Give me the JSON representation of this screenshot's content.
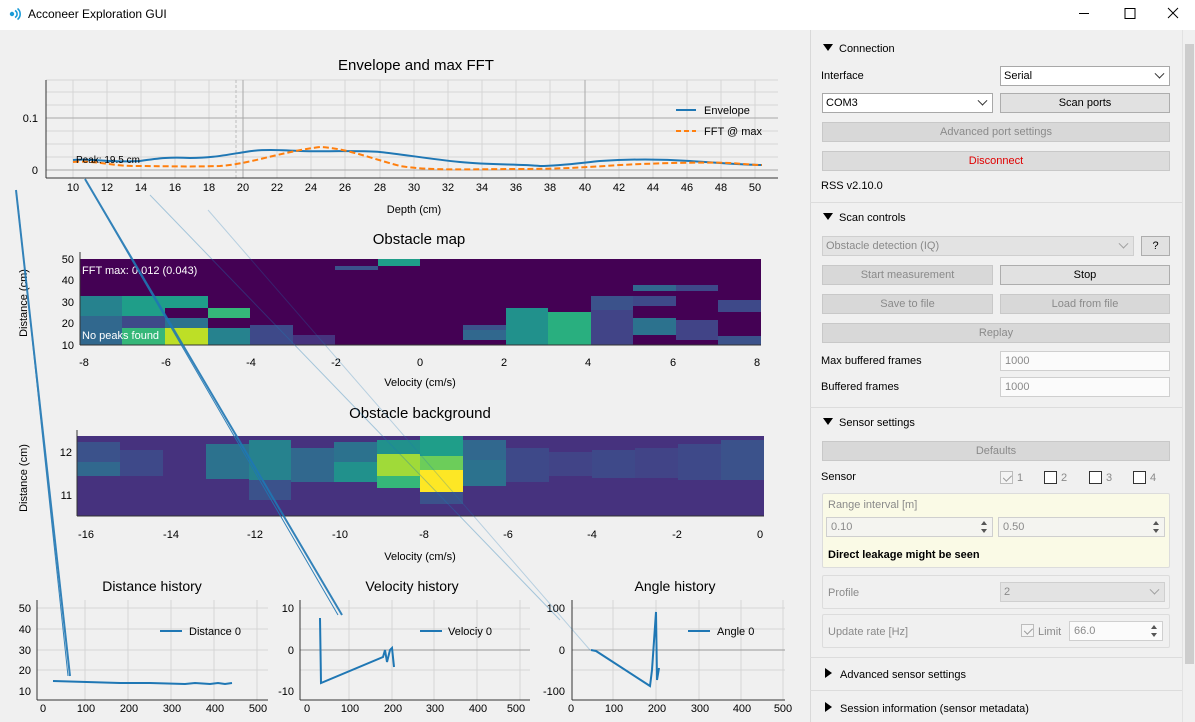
{
  "window": {
    "title": "Acconeer Exploration GUI"
  },
  "plots": {
    "envelope": {
      "title": "Envelope and max FFT",
      "xlabel": "Depth (cm)",
      "legend": [
        "Envelope",
        "FFT @ max"
      ],
      "peak_label": "Peak: 19.5 cm",
      "y_ticks": [
        "0.1",
        "0"
      ],
      "x_ticks": [
        "10",
        "12",
        "14",
        "16",
        "18",
        "20",
        "22",
        "24",
        "26",
        "28",
        "30",
        "32",
        "34",
        "36",
        "38",
        "40",
        "42",
        "44",
        "46",
        "48",
        "50"
      ]
    },
    "obstacle_map": {
      "title": "Obstacle map",
      "xlabel": "Velocity (cm/s)",
      "ylabel": "Distance (cm)",
      "fft_label": "FFT max: 0.012 (0.043)",
      "peaks_label": "No peaks found",
      "y_ticks": [
        "50",
        "40",
        "30",
        "20",
        "10"
      ],
      "x_ticks": [
        "-8",
        "-6",
        "-4",
        "-2",
        "0",
        "2",
        "4",
        "6",
        "8"
      ]
    },
    "obstacle_bg": {
      "title": "Obstacle background",
      "xlabel": "Velocity (cm/s)",
      "ylabel": "Distance (cm)",
      "y_ticks": [
        "12",
        "11"
      ],
      "x_ticks": [
        "-16",
        "-14",
        "-12",
        "-10",
        "-8",
        "-6",
        "-4",
        "-2",
        "0"
      ]
    },
    "distance_history": {
      "title": "Distance history",
      "legend": "Distance 0",
      "y_ticks": [
        "50",
        "40",
        "30",
        "20",
        "10"
      ],
      "x_ticks": [
        "0",
        "100",
        "200",
        "300",
        "400",
        "500"
      ]
    },
    "velocity_history": {
      "title": "Velocity history",
      "legend": "Velociy 0",
      "y_ticks": [
        "10",
        "0",
        "-10"
      ],
      "x_ticks": [
        "0",
        "100",
        "200",
        "300",
        "400",
        "500"
      ]
    },
    "angle_history": {
      "title": "Angle history",
      "legend": "Angle 0",
      "y_ticks": [
        "100",
        "0",
        "-100"
      ],
      "x_ticks": [
        "0",
        "100",
        "200",
        "300",
        "400",
        "500"
      ]
    }
  },
  "sidebar": {
    "connection": {
      "header": "Connection",
      "interface_label": "Interface",
      "interface_value": "Serial",
      "port_value": "COM3",
      "scan_ports": "Scan ports",
      "advanced_port": "Advanced port settings",
      "disconnect": "Disconnect",
      "rss_version": "RSS v2.10.0"
    },
    "scan": {
      "header": "Scan controls",
      "service": "Obstacle detection (IQ)",
      "help": "?",
      "start": "Start measurement",
      "stop": "Stop",
      "save": "Save to file",
      "load": "Load from file",
      "replay": "Replay",
      "max_buffered_label": "Max buffered frames",
      "max_buffered_value": "1000",
      "buffered_label": "Buffered frames",
      "buffered_value": "1000"
    },
    "sensor": {
      "header": "Sensor settings",
      "defaults": "Defaults",
      "sensor_label": "Sensor",
      "sensors": [
        "1",
        "2",
        "3",
        "4"
      ],
      "range_label": "Range interval [m]",
      "range_start": "0.10",
      "range_end": "0.50",
      "warning": "Direct leakage might be seen",
      "profile_label": "Profile",
      "profile_value": "2",
      "update_rate_label": "Update rate [Hz]",
      "limit_label": "Limit",
      "update_rate_value": "66.0"
    },
    "advanced_header": "Advanced sensor settings",
    "session_header": "Session information (sensor metadata)"
  },
  "colors": {
    "line_blue": "#1f77b4",
    "line_orange": "#ff7f0e",
    "disconnect_red": "#e00000",
    "warn_bg": "#fafae6"
  }
}
